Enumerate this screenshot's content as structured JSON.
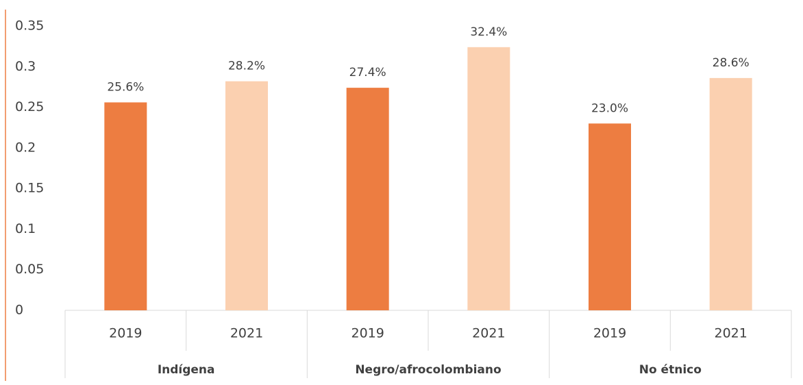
{
  "chart_data": {
    "type": "bar",
    "categories": [
      "2019",
      "2021",
      "2019",
      "2021",
      "2019",
      "2021"
    ],
    "groups": [
      "Indígena",
      "Negro/afrocolombiano",
      "No étnico"
    ],
    "values": [
      0.256,
      0.282,
      0.274,
      0.324,
      0.23,
      0.286
    ],
    "value_labels": [
      "25.6%",
      "28.2%",
      "27.4%",
      "32.4%",
      "23.0%",
      "28.6%"
    ],
    "colors": [
      "#ed7d41",
      "#fbd0b0",
      "#ed7d41",
      "#fbd0b0",
      "#ed7d41",
      "#fbd0b0"
    ],
    "ylim": [
      0,
      0.35
    ],
    "yticks": [
      0,
      0.05,
      0.1,
      0.15,
      0.2,
      0.25,
      0.3,
      0.35
    ],
    "grid": false
  }
}
